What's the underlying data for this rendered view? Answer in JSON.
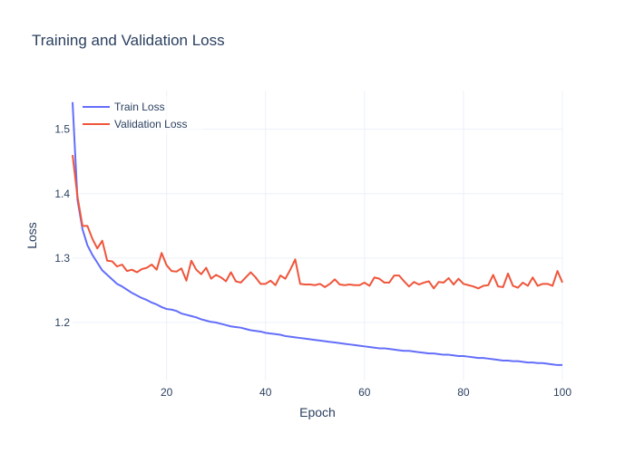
{
  "chart_data": {
    "type": "line",
    "title": "Training and Validation Loss",
    "xlabel": "Epoch",
    "ylabel": "Loss",
    "xlim": [
      1,
      100
    ],
    "ylim": [
      1.11,
      1.56
    ],
    "x_ticks": [
      20,
      40,
      60,
      80,
      100
    ],
    "y_ticks": [
      1.2,
      1.3,
      1.4,
      1.5
    ],
    "grid": true,
    "legend_position": "top-left",
    "x": [
      1,
      2,
      3,
      4,
      5,
      6,
      7,
      8,
      9,
      10,
      11,
      12,
      13,
      14,
      15,
      16,
      17,
      18,
      19,
      20,
      21,
      22,
      23,
      24,
      25,
      26,
      27,
      28,
      29,
      30,
      31,
      32,
      33,
      34,
      35,
      36,
      37,
      38,
      39,
      40,
      41,
      42,
      43,
      44,
      45,
      46,
      47,
      48,
      49,
      50,
      51,
      52,
      53,
      54,
      55,
      56,
      57,
      58,
      59,
      60,
      61,
      62,
      63,
      64,
      65,
      66,
      67,
      68,
      69,
      70,
      71,
      72,
      73,
      74,
      75,
      76,
      77,
      78,
      79,
      80,
      81,
      82,
      83,
      84,
      85,
      86,
      87,
      88,
      89,
      90,
      91,
      92,
      93,
      94,
      95,
      96,
      97,
      98,
      99,
      100
    ],
    "series": [
      {
        "name": "Train Loss",
        "color": "#636efa",
        "values": [
          1.542,
          1.39,
          1.345,
          1.32,
          1.305,
          1.293,
          1.281,
          1.274,
          1.267,
          1.26,
          1.256,
          1.251,
          1.246,
          1.242,
          1.238,
          1.235,
          1.231,
          1.228,
          1.224,
          1.221,
          1.22,
          1.218,
          1.214,
          1.212,
          1.21,
          1.208,
          1.205,
          1.203,
          1.201,
          1.2,
          1.198,
          1.196,
          1.194,
          1.193,
          1.192,
          1.19,
          1.188,
          1.187,
          1.186,
          1.184,
          1.183,
          1.182,
          1.181,
          1.179,
          1.178,
          1.177,
          1.176,
          1.175,
          1.174,
          1.173,
          1.172,
          1.171,
          1.17,
          1.169,
          1.168,
          1.167,
          1.166,
          1.165,
          1.164,
          1.163,
          1.162,
          1.161,
          1.16,
          1.16,
          1.159,
          1.158,
          1.157,
          1.156,
          1.156,
          1.155,
          1.154,
          1.153,
          1.152,
          1.152,
          1.151,
          1.15,
          1.15,
          1.149,
          1.148,
          1.148,
          1.147,
          1.146,
          1.145,
          1.145,
          1.144,
          1.143,
          1.142,
          1.141,
          1.141,
          1.14,
          1.14,
          1.139,
          1.138,
          1.138,
          1.137,
          1.137,
          1.136,
          1.135,
          1.134,
          1.134
        ]
      },
      {
        "name": "Validation Loss",
        "color": "#ef553b",
        "values": [
          1.46,
          1.395,
          1.35,
          1.35,
          1.33,
          1.315,
          1.327,
          1.296,
          1.295,
          1.287,
          1.29,
          1.28,
          1.282,
          1.278,
          1.283,
          1.285,
          1.29,
          1.282,
          1.308,
          1.289,
          1.28,
          1.279,
          1.284,
          1.265,
          1.296,
          1.282,
          1.275,
          1.285,
          1.268,
          1.274,
          1.27,
          1.264,
          1.278,
          1.264,
          1.262,
          1.27,
          1.278,
          1.27,
          1.26,
          1.26,
          1.265,
          1.258,
          1.273,
          1.268,
          1.282,
          1.298,
          1.26,
          1.259,
          1.259,
          1.258,
          1.26,
          1.255,
          1.26,
          1.267,
          1.259,
          1.258,
          1.259,
          1.258,
          1.258,
          1.262,
          1.257,
          1.27,
          1.268,
          1.262,
          1.262,
          1.273,
          1.273,
          1.264,
          1.256,
          1.263,
          1.259,
          1.262,
          1.264,
          1.253,
          1.263,
          1.262,
          1.269,
          1.259,
          1.268,
          1.26,
          1.258,
          1.256,
          1.253,
          1.257,
          1.258,
          1.274,
          1.256,
          1.255,
          1.276,
          1.257,
          1.254,
          1.262,
          1.257,
          1.27,
          1.257,
          1.26,
          1.26,
          1.257,
          1.28,
          1.262
        ]
      }
    ]
  }
}
